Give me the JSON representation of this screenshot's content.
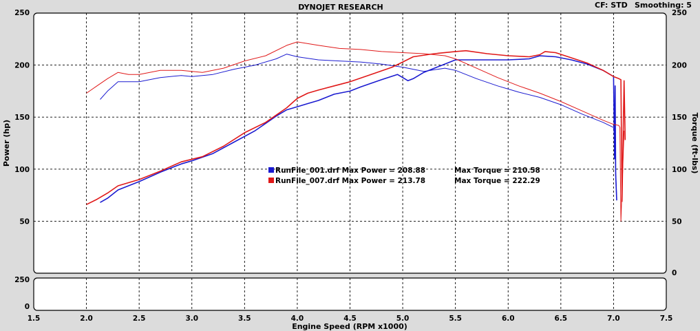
{
  "chart_data": {
    "type": "line",
    "title": "DYNOJET RESEARCH",
    "header_right": {
      "cf": "CF: STD",
      "smoothing": "Smoothing: 5"
    },
    "xlabel": "Engine Speed (RPM x1000)",
    "ylabel_left": "Power (hp)",
    "ylabel_right": "Torque (ft-lbs)",
    "xlim": [
      1.5,
      7.5
    ],
    "ylim": [
      0,
      250
    ],
    "x_ticks": [
      "1.5",
      "2.0",
      "2.5",
      "3.0",
      "3.5",
      "4.0",
      "4.5",
      "5.0",
      "5.5",
      "6.0",
      "6.5",
      "7.0",
      "7.5"
    ],
    "y_ticks_left": [
      "50",
      "100",
      "150",
      "200",
      "250"
    ],
    "y_ticks_right": [
      "0",
      "50",
      "100",
      "150",
      "200",
      "250"
    ],
    "sub_panel_ticks_left": [
      "250",
      "0"
    ],
    "grid": true,
    "legend_placement": "center",
    "series": [
      {
        "name": "RunFile_001.drf",
        "color": "#1a1ad0",
        "legend_label": "RunFile_001.drf Max Power = 208.88",
        "legend_torque": "Max Torque = 210.58",
        "power": [
          [
            2.13,
            68
          ],
          [
            2.2,
            72
          ],
          [
            2.3,
            80
          ],
          [
            2.5,
            88
          ],
          [
            2.7,
            97
          ],
          [
            2.9,
            105
          ],
          [
            3.0,
            108
          ],
          [
            3.2,
            115
          ],
          [
            3.4,
            126
          ],
          [
            3.6,
            137
          ],
          [
            3.8,
            151
          ],
          [
            3.9,
            157
          ],
          [
            4.0,
            160
          ],
          [
            4.1,
            163
          ],
          [
            4.2,
            166
          ],
          [
            4.35,
            172
          ],
          [
            4.5,
            175
          ],
          [
            4.6,
            179
          ],
          [
            4.8,
            186
          ],
          [
            4.95,
            191
          ],
          [
            5.0,
            188
          ],
          [
            5.05,
            185
          ],
          [
            5.1,
            187
          ],
          [
            5.2,
            193
          ],
          [
            5.35,
            199
          ],
          [
            5.5,
            205
          ],
          [
            5.65,
            205
          ],
          [
            5.8,
            205
          ],
          [
            6.0,
            205
          ],
          [
            6.2,
            206
          ],
          [
            6.3,
            208.9
          ],
          [
            6.45,
            208
          ],
          [
            6.6,
            205
          ],
          [
            6.75,
            201
          ],
          [
            6.9,
            195
          ],
          [
            7.0,
            189
          ],
          [
            7.01,
            110
          ],
          [
            7.015,
            180
          ],
          [
            7.02,
            95
          ],
          [
            7.03,
            70
          ]
        ],
        "torque": [
          [
            2.13,
            167
          ],
          [
            2.2,
            175
          ],
          [
            2.3,
            184
          ],
          [
            2.5,
            184
          ],
          [
            2.7,
            188
          ],
          [
            2.9,
            190
          ],
          [
            3.0,
            189
          ],
          [
            3.2,
            191
          ],
          [
            3.4,
            196
          ],
          [
            3.6,
            200
          ],
          [
            3.8,
            206
          ],
          [
            3.9,
            210.6
          ],
          [
            4.0,
            208
          ],
          [
            4.2,
            205
          ],
          [
            4.4,
            204
          ],
          [
            4.6,
            203
          ],
          [
            4.8,
            201
          ],
          [
            5.0,
            198
          ],
          [
            5.2,
            194
          ],
          [
            5.4,
            197
          ],
          [
            5.5,
            195
          ],
          [
            5.7,
            187
          ],
          [
            5.9,
            180
          ],
          [
            6.1,
            174
          ],
          [
            6.3,
            169
          ],
          [
            6.5,
            162
          ],
          [
            6.7,
            153
          ],
          [
            6.9,
            145
          ],
          [
            7.0,
            140
          ],
          [
            7.01,
            130
          ],
          [
            7.02,
            98
          ],
          [
            7.03,
            72
          ]
        ]
      },
      {
        "name": "RunFile_007.drf",
        "color": "#e01818",
        "legend_label": "RunFile_007.drf Max Power = 213.78",
        "legend_torque": "Max Torque = 222.29",
        "power": [
          [
            2.0,
            66
          ],
          [
            2.1,
            71
          ],
          [
            2.2,
            77
          ],
          [
            2.3,
            84
          ],
          [
            2.5,
            90
          ],
          [
            2.7,
            98
          ],
          [
            2.9,
            107
          ],
          [
            3.1,
            112
          ],
          [
            3.3,
            122
          ],
          [
            3.5,
            135
          ],
          [
            3.7,
            145
          ],
          [
            3.9,
            159
          ],
          [
            4.0,
            168
          ],
          [
            4.1,
            173
          ],
          [
            4.2,
            176
          ],
          [
            4.35,
            180
          ],
          [
            4.5,
            184
          ],
          [
            4.7,
            191
          ],
          [
            4.9,
            198
          ],
          [
            5.0,
            203
          ],
          [
            5.1,
            208
          ],
          [
            5.3,
            211
          ],
          [
            5.5,
            213
          ],
          [
            5.6,
            213.8
          ],
          [
            5.8,
            211
          ],
          [
            6.0,
            209
          ],
          [
            6.2,
            208
          ],
          [
            6.3,
            210
          ],
          [
            6.35,
            213
          ],
          [
            6.45,
            212
          ],
          [
            6.6,
            207
          ],
          [
            6.75,
            202
          ],
          [
            6.9,
            195
          ],
          [
            7.0,
            189
          ],
          [
            7.05,
            187
          ],
          [
            7.07,
            186
          ],
          [
            7.08,
            69
          ],
          [
            7.1,
            185
          ],
          [
            7.11,
            128
          ]
        ],
        "torque": [
          [
            2.0,
            173
          ],
          [
            2.1,
            180
          ],
          [
            2.2,
            187
          ],
          [
            2.3,
            193
          ],
          [
            2.4,
            191
          ],
          [
            2.5,
            191
          ],
          [
            2.7,
            195
          ],
          [
            2.9,
            195
          ],
          [
            3.1,
            193
          ],
          [
            3.3,
            197
          ],
          [
            3.5,
            204
          ],
          [
            3.7,
            209
          ],
          [
            3.9,
            219
          ],
          [
            4.0,
            222.3
          ],
          [
            4.2,
            219
          ],
          [
            4.4,
            216
          ],
          [
            4.6,
            215
          ],
          [
            4.8,
            213
          ],
          [
            5.0,
            212
          ],
          [
            5.2,
            211
          ],
          [
            5.4,
            209
          ],
          [
            5.5,
            206
          ],
          [
            5.7,
            197
          ],
          [
            5.9,
            188
          ],
          [
            6.1,
            180
          ],
          [
            6.3,
            173
          ],
          [
            6.5,
            165
          ],
          [
            6.7,
            156
          ],
          [
            6.9,
            147
          ],
          [
            7.0,
            143
          ],
          [
            7.05,
            142
          ],
          [
            7.06,
            140
          ],
          [
            7.07,
            50
          ],
          [
            7.1,
            137
          ]
        ]
      }
    ]
  }
}
